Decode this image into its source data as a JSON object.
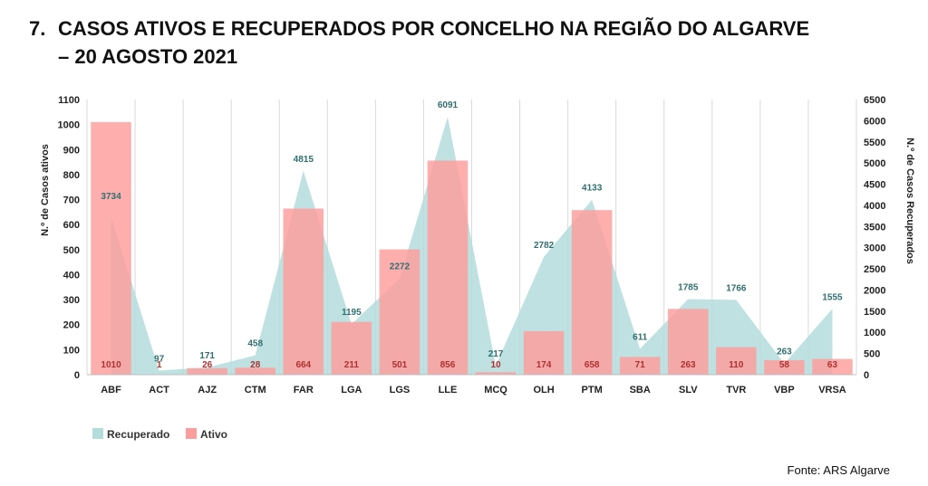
{
  "page": {
    "title_number": "7.",
    "title_line1": "CASOS ATIVOS E RECUPERADOS POR CONCELHO NA REGIÃO DO ALGARVE",
    "title_line2": "– 20 AGOSTO 2021",
    "source": "Fonte: ARS Algarve"
  },
  "colors": {
    "ativo": "#ff9c9c",
    "recuperado": "#b4dcdc",
    "grid": "#d9d9d9"
  },
  "chart_data": {
    "type": "bar",
    "title": "CASOS ATIVOS E RECUPERADOS POR CONCELHO NA REGIÃO DO ALGARVE – 20 AGOSTO 2021",
    "categories": [
      "ABF",
      "ACT",
      "AJZ",
      "CTM",
      "FAR",
      "LGA",
      "LGS",
      "LLE",
      "MCQ",
      "OLH",
      "PTM",
      "SBA",
      "SLV",
      "TVR",
      "VBP",
      "VRSA"
    ],
    "series": [
      {
        "name": "Ativo",
        "type": "bar",
        "axis": "left",
        "values": [
          1010,
          1,
          26,
          28,
          664,
          211,
          501,
          856,
          10,
          174,
          658,
          71,
          263,
          110,
          58,
          63
        ]
      },
      {
        "name": "Recuperado",
        "type": "area",
        "axis": "right",
        "values": [
          3734,
          97,
          171,
          458,
          4815,
          1195,
          2272,
          6091,
          217,
          2782,
          4133,
          611,
          1785,
          1766,
          263,
          1555
        ]
      }
    ],
    "ylabel": "N.º de Casos ativos",
    "ylabel_right": "N.º de Casos Recuperados",
    "ylim": [
      0,
      1100
    ],
    "ylim_right": [
      0,
      6500
    ],
    "yticks": [
      0,
      100,
      200,
      300,
      400,
      500,
      600,
      700,
      800,
      900,
      1000,
      1100
    ],
    "yticks_right": [
      0,
      500,
      1000,
      1500,
      2000,
      2500,
      3000,
      3500,
      4000,
      4500,
      5000,
      5500,
      6000,
      6500
    ],
    "legend": [
      "Recuperado",
      "Ativo"
    ],
    "legend_position": "bottom-left",
    "grid": "vertical"
  }
}
